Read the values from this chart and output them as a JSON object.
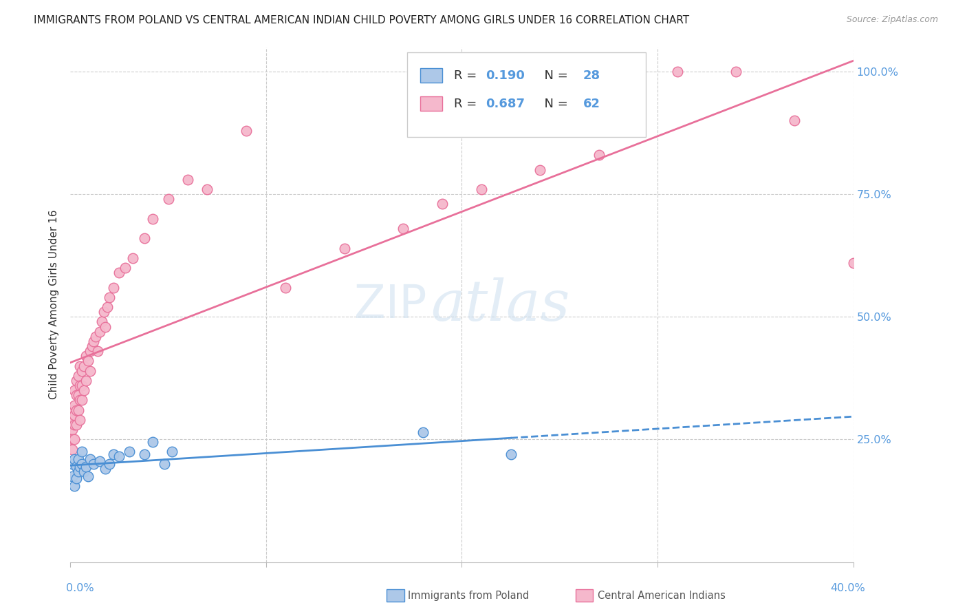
{
  "title": "IMMIGRANTS FROM POLAND VS CENTRAL AMERICAN INDIAN CHILD POVERTY AMONG GIRLS UNDER 16 CORRELATION CHART",
  "source": "Source: ZipAtlas.com",
  "ylabel": "Child Poverty Among Girls Under 16",
  "blue_R": 0.19,
  "blue_N": 28,
  "pink_R": 0.687,
  "pink_N": 62,
  "blue_label": "Immigrants from Poland",
  "pink_label": "Central American Indians",
  "blue_color": "#adc8e8",
  "pink_color": "#f5b8cc",
  "blue_line_color": "#4a8fd4",
  "pink_line_color": "#e8709a",
  "watermark": "ZIPatlas",
  "blue_scatter_x": [
    0.001,
    0.001,
    0.002,
    0.002,
    0.003,
    0.003,
    0.004,
    0.004,
    0.005,
    0.006,
    0.006,
    0.007,
    0.008,
    0.009,
    0.01,
    0.012,
    0.015,
    0.018,
    0.02,
    0.022,
    0.025,
    0.03,
    0.038,
    0.042,
    0.048,
    0.052,
    0.18,
    0.225
  ],
  "blue_scatter_y": [
    0.2,
    0.175,
    0.21,
    0.155,
    0.195,
    0.17,
    0.185,
    0.21,
    0.195,
    0.2,
    0.225,
    0.185,
    0.195,
    0.175,
    0.21,
    0.2,
    0.205,
    0.19,
    0.2,
    0.22,
    0.215,
    0.225,
    0.22,
    0.245,
    0.2,
    0.225,
    0.265,
    0.22
  ],
  "pink_scatter_x": [
    0.001,
    0.001,
    0.001,
    0.001,
    0.001,
    0.002,
    0.002,
    0.002,
    0.002,
    0.002,
    0.003,
    0.003,
    0.003,
    0.003,
    0.004,
    0.004,
    0.004,
    0.005,
    0.005,
    0.005,
    0.005,
    0.006,
    0.006,
    0.006,
    0.007,
    0.007,
    0.008,
    0.008,
    0.009,
    0.01,
    0.01,
    0.011,
    0.012,
    0.013,
    0.014,
    0.015,
    0.016,
    0.017,
    0.018,
    0.019,
    0.02,
    0.022,
    0.025,
    0.028,
    0.032,
    0.038,
    0.042,
    0.05,
    0.06,
    0.07,
    0.09,
    0.11,
    0.14,
    0.17,
    0.19,
    0.21,
    0.24,
    0.27,
    0.31,
    0.34,
    0.37,
    0.4
  ],
  "pink_scatter_y": [
    0.27,
    0.29,
    0.31,
    0.25,
    0.23,
    0.28,
    0.3,
    0.32,
    0.35,
    0.25,
    0.28,
    0.31,
    0.34,
    0.37,
    0.31,
    0.34,
    0.38,
    0.29,
    0.33,
    0.36,
    0.4,
    0.33,
    0.36,
    0.39,
    0.35,
    0.4,
    0.37,
    0.42,
    0.41,
    0.39,
    0.43,
    0.44,
    0.45,
    0.46,
    0.43,
    0.47,
    0.49,
    0.51,
    0.48,
    0.52,
    0.54,
    0.56,
    0.59,
    0.6,
    0.62,
    0.66,
    0.7,
    0.74,
    0.78,
    0.76,
    0.88,
    0.56,
    0.64,
    0.68,
    0.73,
    0.76,
    0.8,
    0.83,
    1.0,
    1.0,
    0.9,
    0.61
  ],
  "xlim": [
    0,
    0.4
  ],
  "ylim": [
    0.0,
    1.05
  ],
  "xticks": [
    0,
    0.1,
    0.2,
    0.3,
    0.4
  ],
  "ytick_vals": [
    0.25,
    0.5,
    0.75,
    1.0
  ],
  "ytick_labels": [
    "25.0%",
    "50.0%",
    "75.0%",
    "100.0%"
  ],
  "grid_color": "#cccccc",
  "right_axis_color": "#5599dd",
  "bottom_label_color": "#5599dd"
}
